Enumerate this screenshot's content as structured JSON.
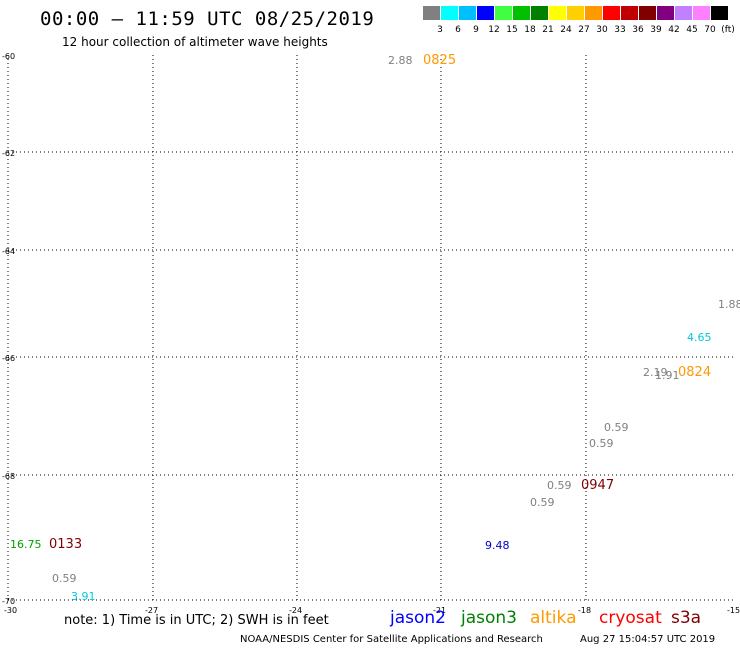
{
  "header": {
    "title": "00:00 – 11:59 UTC 08/25/2019",
    "subtitle": "12 hour collection of altimeter wave heights"
  },
  "scale": {
    "colors": [
      "#808080",
      "#00ffff",
      "#00bfff",
      "#0000ff",
      "#40ff40",
      "#00c000",
      "#008000",
      "#ffff00",
      "#ffd000",
      "#ff9900",
      "#ff0000",
      "#c00000",
      "#800000",
      "#800080",
      "#c080ff",
      "#ff80ff",
      "#000000"
    ],
    "ticks": [
      "3",
      "6",
      "9",
      "12",
      "15",
      "18",
      "21",
      "24",
      "27",
      "30",
      "33",
      "36",
      "39",
      "42",
      "45",
      "70"
    ],
    "unit": "(ft)"
  },
  "map": {
    "lat_labels": [
      "-60",
      "-62",
      "-64",
      "-66",
      "-68",
      "-70"
    ],
    "lon_labels": [
      "-30",
      "-27",
      "-24",
      "-21",
      "-18",
      "-15"
    ]
  },
  "labels": [
    {
      "text": "2.88",
      "color": "#808080"
    },
    {
      "text": "0825",
      "color": "#ff9900"
    },
    {
      "text": "1.88",
      "color": "#808080"
    },
    {
      "text": "4.65",
      "color": "#00c8e0"
    },
    {
      "text": "2.19",
      "color": "#808080"
    },
    {
      "text": "1.91",
      "color": "#808080"
    },
    {
      "text": "0824",
      "color": "#ff9900"
    },
    {
      "text": "0.59",
      "color": "#808080"
    },
    {
      "text": "0.59",
      "color": "#808080"
    },
    {
      "text": "0.59",
      "color": "#808080"
    },
    {
      "text": "0947",
      "color": "#800000"
    },
    {
      "text": "0.59",
      "color": "#808080"
    },
    {
      "text": "9.48",
      "color": "#0000cc"
    },
    {
      "text": "16.75",
      "color": "#00a000"
    },
    {
      "text": "0133",
      "color": "#800000"
    },
    {
      "text": "0.59",
      "color": "#808080"
    },
    {
      "text": "3.91",
      "color": "#00c8e0"
    }
  ],
  "footer": {
    "note": "note:  1) Time is in UTC;  2) SWH is in feet",
    "satellites": [
      {
        "name": "jason2",
        "color": "#0000ff"
      },
      {
        "name": "jason3",
        "color": "#008000"
      },
      {
        "name": "altika",
        "color": "#ff9900"
      },
      {
        "name": "cryosat",
        "color": "#ff0000"
      },
      {
        "name": "s3a",
        "color": "#800000"
      }
    ],
    "credit": "NOAA/NESDIS Center for Satellite Applications and Research",
    "timestamp": "Aug 27 15:04:57 UTC 2019"
  }
}
